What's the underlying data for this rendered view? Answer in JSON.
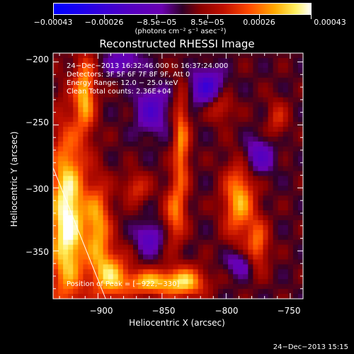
{
  "chart_data": {
    "type": "heatmap",
    "title": "Reconstructed RHESSI Image",
    "xlabel": "Heliocentric X (arcsec)",
    "ylabel": "Heliocentric Y (arcsec)",
    "xlim": [
      -935,
      -740
    ],
    "ylim": [
      -388,
      -193
    ],
    "x_ticks": [
      {
        "value": -900,
        "label": "−900"
      },
      {
        "value": -850,
        "label": "−850"
      },
      {
        "value": -800,
        "label": "−800"
      },
      {
        "value": -750,
        "label": "−750"
      }
    ],
    "y_ticks": [
      {
        "value": -200,
        "label": "−200"
      },
      {
        "value": -250,
        "label": "−250"
      },
      {
        "value": -300,
        "label": "−300"
      },
      {
        "value": -350,
        "label": "−350"
      }
    ],
    "colorbar": {
      "range": [
        -0.00043,
        0.00043
      ],
      "ticks": [
        {
          "value": -0.00043,
          "label": "−0.00043"
        },
        {
          "value": -0.00026,
          "label": "−0.00026"
        },
        {
          "value": -8.5e-05,
          "label": "−8.5e−05"
        },
        {
          "value": 8.5e-05,
          "label": "8.5e−05"
        },
        {
          "value": 0.00026,
          "label": "0.00026"
        },
        {
          "value": 0.00043,
          "label": "0.00043"
        }
      ],
      "units": "(photons cm⁻² s⁻¹ asec⁻²)"
    },
    "annotations": [
      "24−Dec−2013 16:32:46.000 to 16:37:24.000",
      "Detectors: 3F 5F 6F 7F 8F 9F, Att 0",
      "Energy Range: 12.0 − 25.0 keV",
      "Clean     Total counts: 2.36E+04"
    ],
    "peak_label": "Position of Peak = [−922,−330]",
    "peak_position": [
      -922,
      -330
    ],
    "limb_line": [
      [
        -935,
        -284
      ],
      [
        -894,
        -388
      ]
    ],
    "blobs": [
      {
        "x": -924,
        "y": -325,
        "rx": 14,
        "ry": 70,
        "v": 0.00043
      },
      {
        "x": -910,
        "y": -225,
        "rx": 8,
        "ry": 30,
        "v": 0.0003
      },
      {
        "x": -900,
        "y": -330,
        "rx": 10,
        "ry": 35,
        "v": 0.00028
      },
      {
        "x": -890,
        "y": -370,
        "rx": 14,
        "ry": 20,
        "v": 0.0003
      },
      {
        "x": -860,
        "y": -375,
        "rx": 18,
        "ry": 10,
        "v": 0.0003
      },
      {
        "x": -832,
        "y": -375,
        "rx": 16,
        "ry": 12,
        "v": 0.00032
      },
      {
        "x": -835,
        "y": -265,
        "rx": 6,
        "ry": 40,
        "v": 0.00026
      },
      {
        "x": -840,
        "y": -320,
        "rx": 8,
        "ry": 25,
        "v": 0.00022
      },
      {
        "x": -790,
        "y": -310,
        "rx": 12,
        "ry": 30,
        "v": 0.0003
      },
      {
        "x": -775,
        "y": -345,
        "rx": 8,
        "ry": 20,
        "v": 0.00022
      },
      {
        "x": -805,
        "y": -235,
        "rx": 10,
        "ry": 12,
        "v": 0.00016
      },
      {
        "x": -760,
        "y": -245,
        "rx": 8,
        "ry": 15,
        "v": 0.00014
      },
      {
        "x": -870,
        "y": -300,
        "rx": 10,
        "ry": 12,
        "v": 0.00016
      },
      {
        "x": -815,
        "y": -220,
        "rx": 12,
        "ry": 14,
        "v": -0.00026
      },
      {
        "x": -858,
        "y": -238,
        "rx": 12,
        "ry": 18,
        "v": -0.0002
      },
      {
        "x": -860,
        "y": -340,
        "rx": 10,
        "ry": 12,
        "v": -0.00018
      },
      {
        "x": -775,
        "y": -275,
        "rx": 12,
        "ry": 14,
        "v": -0.00018
      },
      {
        "x": -880,
        "y": -200,
        "rx": 14,
        "ry": 10,
        "v": -0.00015
      },
      {
        "x": -790,
        "y": -360,
        "rx": 10,
        "ry": 10,
        "v": -0.00015
      }
    ]
  },
  "footer": {
    "date": "24−Dec−2013 15:15"
  }
}
